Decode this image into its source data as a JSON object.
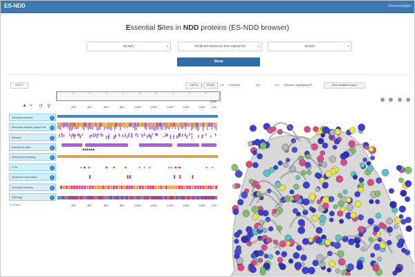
{
  "navbar": {
    "brand": "ES-NDD",
    "docs_link": "Documentation"
  },
  "title": {
    "part1": "E",
    "part2": "ssential ",
    "part3": "S",
    "part4": "ites in ",
    "part5": "NDD",
    "part6": " proteins (ES-NDD browser)"
  },
  "selectors": [
    {
      "id": "gene1",
      "value": "SCN2A"
    },
    {
      "id": "source",
      "value": "Predicted structures from AlphaFold"
    },
    {
      "id": "gene2",
      "value": "SCN2A"
    }
  ],
  "show_button": "Show",
  "viewer": {
    "reset_label": "RESET",
    "ruler_end": "2005",
    "tracks": [
      "Selected structure",
      "Structural feature (AlphaFold)",
      "Variants",
      "Domains & sites",
      "Molecule processing",
      "PTM",
      "Sequence information",
      "Structural features",
      "Topology"
    ],
    "tick_labels": [
      "200",
      "400",
      "600",
      "800",
      "1,000",
      "1,200",
      "1,400",
      "1,600",
      "1,800",
      "2,00"
    ],
    "footer": "ProtVista ↑"
  },
  "mol_toolbar": {
    "uniprot": "UniProt",
    "sep1": "|",
    "scn2a_tab": "SCN2A",
    "range1": "1 A",
    "gene": "SCN2A",
    "chain": "A",
    "range2": "3 D",
    "highlight": "Variation: highlighting",
    "toggle": "Show candidate regions"
  },
  "colors": {
    "navbar": "#3d7ab3",
    "track_label_bg": "#d5ecf9",
    "accent_blue": "#2f6ea7"
  }
}
